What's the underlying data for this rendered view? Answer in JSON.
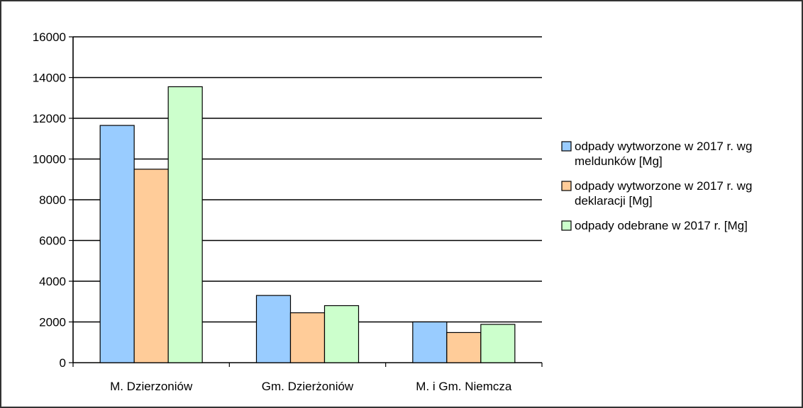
{
  "chart_data": {
    "type": "bar",
    "categories": [
      "M. Dzierzoniów",
      "Gm. Dzierżoniów",
      "M. i Gm. Niemcza"
    ],
    "series": [
      {
        "name": "odpady wytworzone w 2017 r. wg meldunków [Mg]",
        "legend_lines": [
          "odpady wytworzone w 2017 r. wg",
          "meldunków [Mg]"
        ],
        "color": "#99ccff",
        "values": [
          11650,
          3300,
          2000
        ]
      },
      {
        "name": "odpady wytworzone w 2017 r. wg deklaracji [Mg]",
        "legend_lines": [
          "odpady wytworzone w 2017 r. wg",
          "deklaracji [Mg]"
        ],
        "color": "#ffcc99",
        "values": [
          9500,
          2450,
          1480
        ]
      },
      {
        "name": "odpady odebrane w 2017 r. [Mg]",
        "legend_lines": [
          "odpady odebrane w 2017 r. [Mg]"
        ],
        "color": "#ccffcc",
        "values": [
          13550,
          2800,
          1880
        ]
      }
    ],
    "y_ticks": [
      "0",
      "2000",
      "4000",
      "6000",
      "8000",
      "10000",
      "12000",
      "14000",
      "16000"
    ],
    "ylim": [
      0,
      16000
    ],
    "grid": true,
    "legend_position": "right",
    "title": "",
    "xlabel": "",
    "ylabel": ""
  }
}
